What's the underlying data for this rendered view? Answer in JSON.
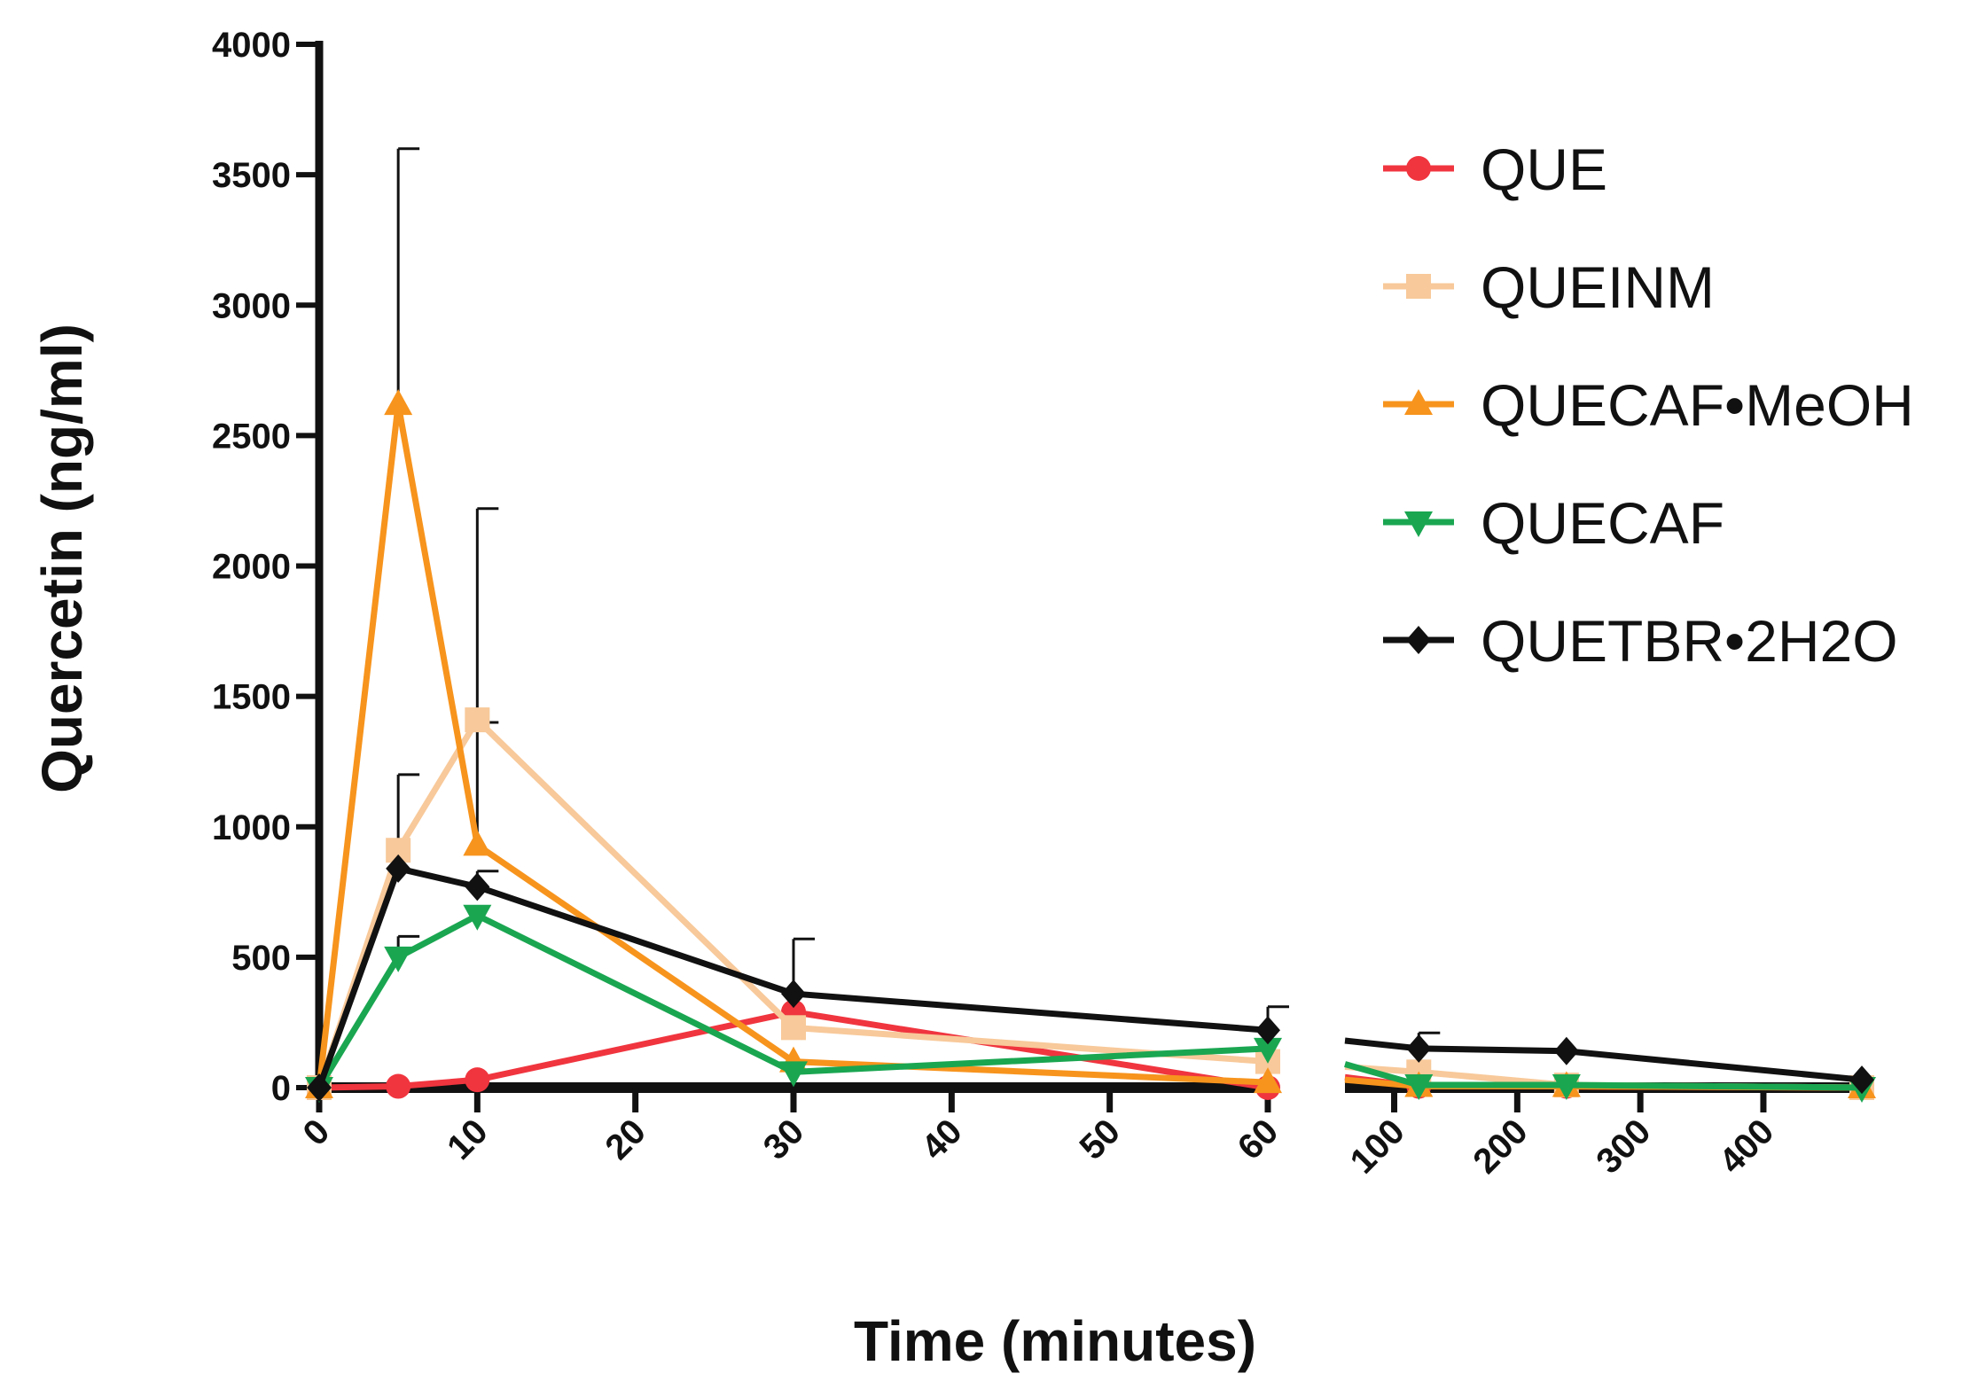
{
  "chart_data": {
    "type": "line",
    "title": "",
    "xlabel": "Time (minutes)",
    "ylabel": "Quercetin (ng/ml)",
    "ylim": [
      0,
      4000
    ],
    "y_ticks": [
      "0",
      "500",
      "1000",
      "1500",
      "2000",
      "2500",
      "3000",
      "3500",
      "4000"
    ],
    "x_segments": [
      {
        "range": [
          0,
          60
        ],
        "ticks": [
          0,
          10,
          20,
          30,
          40,
          50,
          60
        ],
        "tick_labels": [
          "0",
          "10",
          "20",
          "30",
          "40",
          "50",
          "60"
        ]
      },
      {
        "range": [
          60,
          480
        ],
        "ticks": [
          100,
          200,
          300,
          400
        ],
        "tick_labels": [
          "100",
          "200",
          "300",
          "400"
        ]
      }
    ],
    "legend_position": "top-right",
    "series": [
      {
        "name": "QUE",
        "color": "#f0353f",
        "marker": "circle",
        "points": [
          [
            0,
            0
          ],
          [
            5,
            5
          ],
          [
            10,
            30
          ],
          [
            30,
            290
          ],
          [
            60,
            0
          ]
        ],
        "points_break": [
          [
            60,
            40
          ],
          [
            120,
            5
          ],
          [
            240,
            5
          ],
          [
            480,
            0
          ]
        ],
        "error_bars": []
      },
      {
        "name": "QUEINM",
        "color": "#f8c99a",
        "marker": "square",
        "points": [
          [
            0,
            0
          ],
          [
            5,
            910
          ],
          [
            10,
            1410
          ],
          [
            30,
            230
          ],
          [
            60,
            100
          ]
        ],
        "points_break": [
          [
            60,
            80
          ],
          [
            120,
            60
          ],
          [
            240,
            10
          ],
          [
            480,
            0
          ]
        ],
        "error_bars": [
          [
            5,
            1200
          ],
          [
            10,
            1400
          ]
        ]
      },
      {
        "name": "QUECAF•MeOH",
        "color": "#f7941d",
        "marker": "triangle-up",
        "points": [
          [
            0,
            0
          ],
          [
            5,
            2620
          ],
          [
            10,
            930
          ],
          [
            30,
            100
          ],
          [
            60,
            20
          ]
        ],
        "points_break": [
          [
            60,
            30
          ],
          [
            120,
            5
          ],
          [
            240,
            5
          ],
          [
            480,
            0
          ]
        ],
        "error_bars": [
          [
            5,
            3600
          ],
          [
            10,
            2220
          ]
        ]
      },
      {
        "name": "QUECAF",
        "color": "#1aa651",
        "marker": "triangle-down",
        "points": [
          [
            0,
            0
          ],
          [
            5,
            500
          ],
          [
            10,
            660
          ],
          [
            30,
            60
          ],
          [
            60,
            150
          ]
        ],
        "points_break": [
          [
            60,
            90
          ],
          [
            120,
            10
          ],
          [
            240,
            10
          ],
          [
            480,
            0
          ]
        ],
        "error_bars": [
          [
            5,
            580
          ]
        ]
      },
      {
        "name": "QUETBR•2H2O",
        "color": "#111111",
        "marker": "diamond",
        "points": [
          [
            0,
            0
          ],
          [
            5,
            840
          ],
          [
            10,
            770
          ],
          [
            30,
            360
          ],
          [
            60,
            220
          ]
        ],
        "points_break": [
          [
            60,
            180
          ],
          [
            120,
            150
          ],
          [
            240,
            140
          ],
          [
            480,
            30
          ]
        ],
        "error_bars": [
          [
            10,
            830
          ],
          [
            30,
            570
          ],
          [
            60,
            310
          ],
          [
            120,
            210
          ]
        ]
      }
    ]
  }
}
